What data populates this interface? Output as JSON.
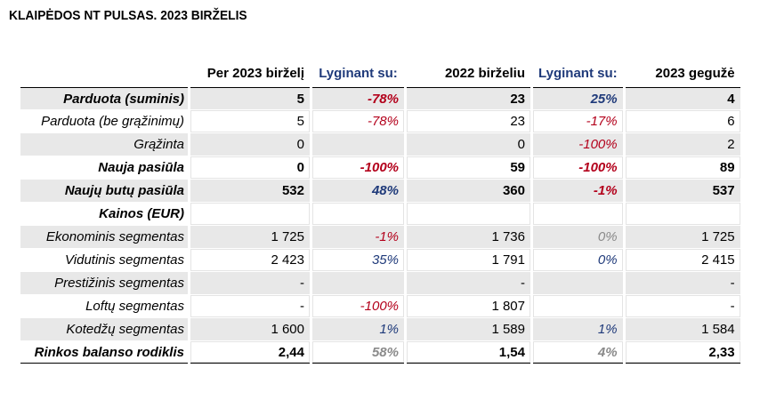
{
  "title": "KLAIPĖDOS NT PULSAS. 2023 BIRŽELIS",
  "headers": [
    "Per 2023 birželį",
    "Lyginant su:",
    "2022 birželiu",
    "Lyginant su:",
    "2023 gegužė"
  ],
  "rows": [
    {
      "label": "Parduota (suminis)",
      "v1": "5",
      "c1": "-78%",
      "v2": "23",
      "c2": "25%",
      "v3": "4"
    },
    {
      "label": "Parduota (be grąžinimų)",
      "v1": "5",
      "c1": "-78%",
      "v2": "23",
      "c2": "-17%",
      "v3": "6"
    },
    {
      "label": "Grąžinta",
      "v1": "0",
      "c1": "",
      "v2": "0",
      "c2": "-100%",
      "v3": "2"
    },
    {
      "label": "Nauja pasiūla",
      "v1": "0",
      "c1": "-100%",
      "v2": "59",
      "c2": "-100%",
      "v3": "89"
    },
    {
      "label": "Naujų butų pasiūla",
      "v1": "532",
      "c1": "48%",
      "v2": "360",
      "c2": "-1%",
      "v3": "537"
    },
    {
      "label": "Kainos (EUR)",
      "v1": "",
      "c1": "",
      "v2": "",
      "c2": "",
      "v3": ""
    },
    {
      "label": "Ekonominis segmentas",
      "v1": "1 725",
      "c1": "-1%",
      "v2": "1 736",
      "c2": "0%",
      "v3": "1 725"
    },
    {
      "label": "Vidutinis segmentas",
      "v1": "2 423",
      "c1": "35%",
      "v2": "1 791",
      "c2": "0%",
      "v3": "2 415"
    },
    {
      "label": "Prestižinis segmentas",
      "v1": "-",
      "c1": "",
      "v2": "-",
      "c2": "",
      "v3": "-"
    },
    {
      "label": "Loftų segmentas",
      "v1": "-",
      "c1": "-100%",
      "v2": "1 807",
      "c2": "",
      "v3": "-"
    },
    {
      "label": "Kotedžų segmentas",
      "v1": "1 600",
      "c1": "1%",
      "v2": "1 589",
      "c2": "1%",
      "v3": "1 584"
    },
    {
      "label": "Rinkos balanso rodiklis",
      "v1": "2,44",
      "c1": "58%",
      "v2": "1,54",
      "c2": "4%",
      "v3": "2,33"
    }
  ]
}
